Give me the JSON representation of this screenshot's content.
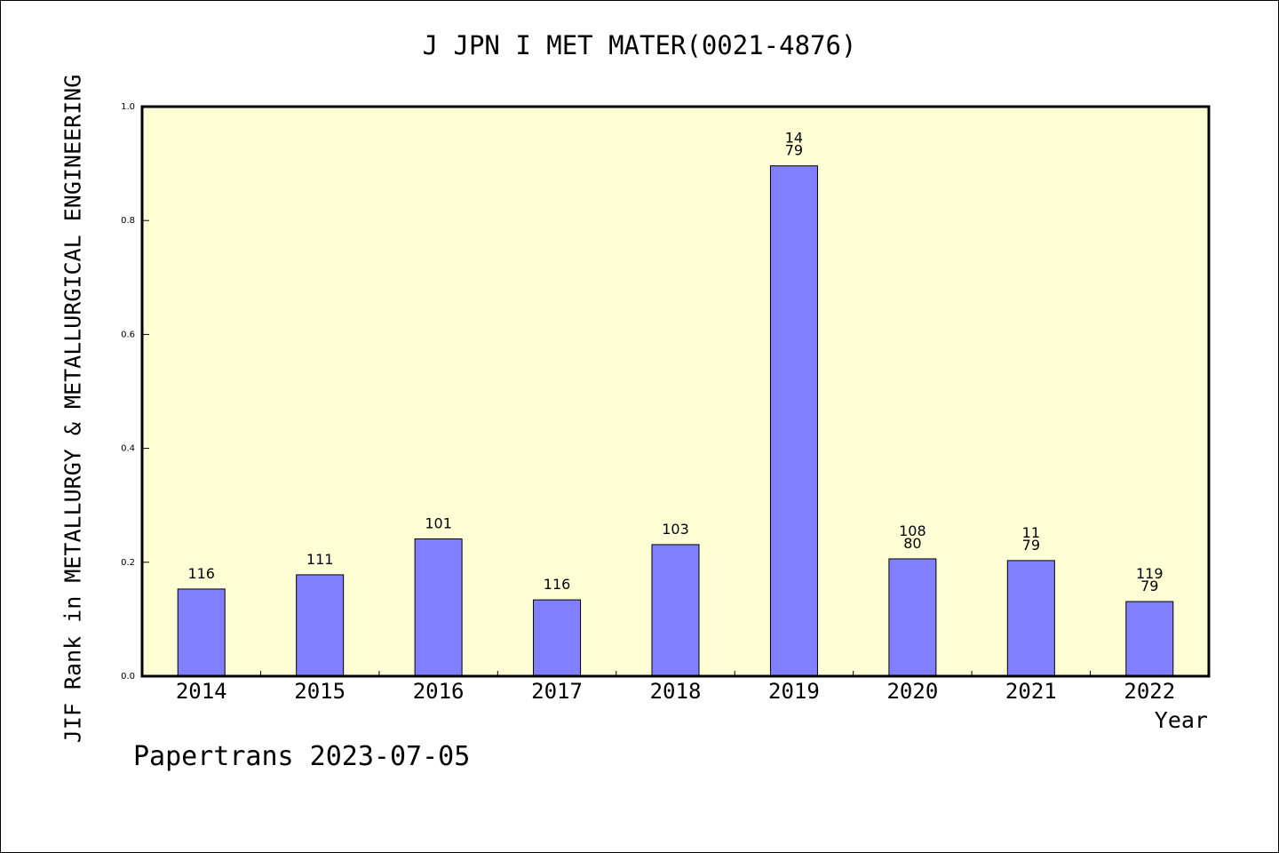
{
  "colors": {
    "plot_background": "#ffffd5",
    "bar_fill": "#8080ff",
    "axis": "#000000"
  },
  "footer_text": "Papertrans 2023-07-05",
  "chart_data": {
    "type": "bar",
    "title": "J JPN I MET MATER(0021-4876)",
    "xlabel": "Year",
    "ylabel": "JIF Rank in METALLURGY & METALLURGICAL ENGINEERING",
    "ylim": [
      0,
      1.0
    ],
    "yticks": [
      "0.0",
      "0.2",
      "0.4",
      "0.6",
      "0.8",
      "1.0"
    ],
    "grid": false,
    "categories": [
      "2014",
      "2015",
      "2016",
      "2017",
      "2018",
      "2019",
      "2020",
      "2021",
      "2022"
    ],
    "values": [
      0.153,
      0.178,
      0.241,
      0.134,
      0.231,
      0.896,
      0.206,
      0.203,
      0.131
    ],
    "bar_labels": [
      [
        "116"
      ],
      [
        "111"
      ],
      [
        "101"
      ],
      [
        "116"
      ],
      [
        "103"
      ],
      [
        "14",
        "79"
      ],
      [
        "108",
        "80"
      ],
      [
        "11",
        "79"
      ],
      [
        "119",
        "79"
      ]
    ]
  }
}
